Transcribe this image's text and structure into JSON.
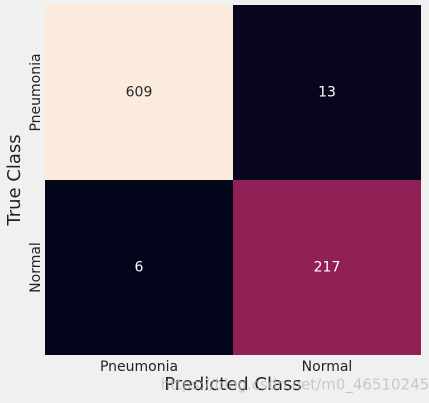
{
  "chart_data": {
    "type": "heatmap",
    "x_label": "Predicted Class",
    "y_label": "True Class",
    "x_categories": [
      "Pneumonia",
      "Normal"
    ],
    "y_categories": [
      "Pneumonia",
      "Normal"
    ],
    "values": [
      [
        609,
        13
      ],
      [
        6,
        217
      ]
    ],
    "colormap": [
      "#03051a",
      "#8b1d55",
      "#f0604d",
      "#faebdd"
    ],
    "watermark": "https://blog.csdn.net/m0_46510245"
  }
}
